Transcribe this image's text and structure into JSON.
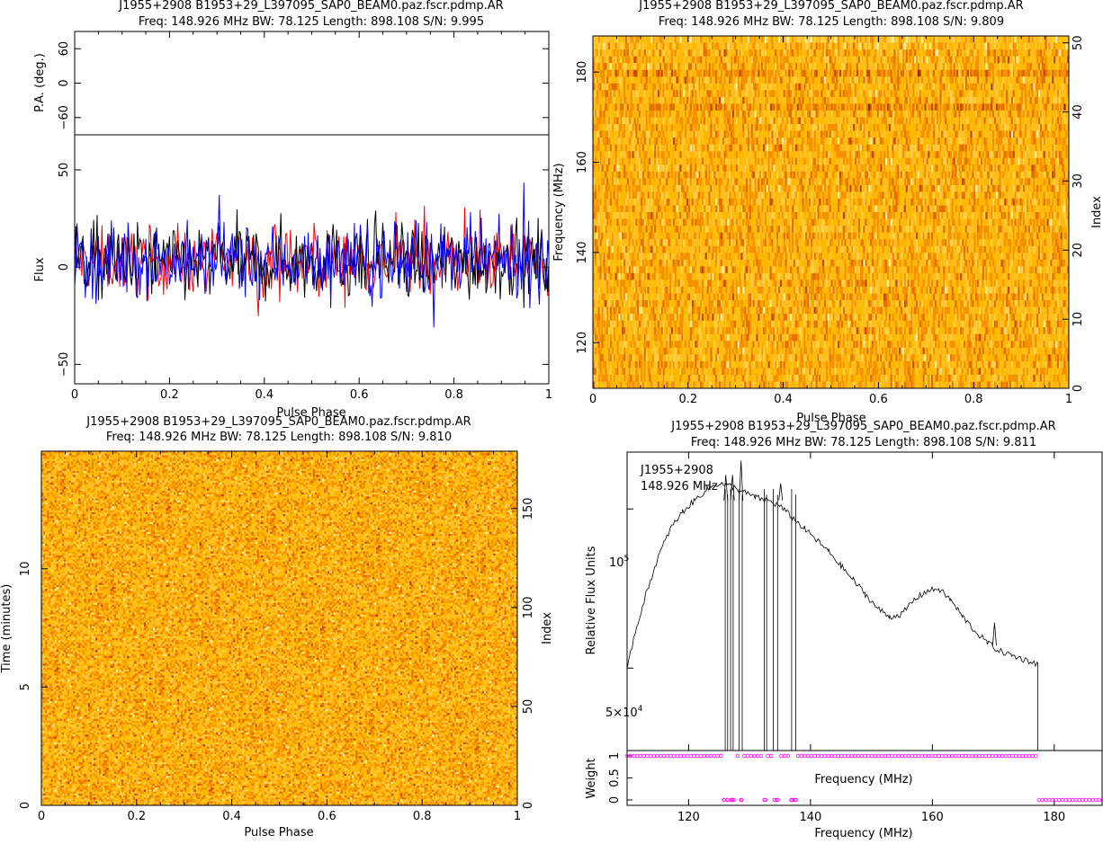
{
  "chart_data": [
    {
      "panel": "top-left",
      "type": "line",
      "title": "J1955+2908  B1953+29_L397095_SAP0_BEAM0.paz.fscr.pdmp.AR",
      "subtitle": "Freq: 148.926 MHz BW: 78.125 Length: 898.108 S/N: 9.995",
      "upper": {
        "ylabel": "P.A. (deg.)",
        "ylim": [
          -90,
          90
        ],
        "yticks": [
          "60",
          "0",
          "−60"
        ],
        "series": []
      },
      "lower": {
        "ylabel": "Flux",
        "xlabel": "Pulse Phase",
        "xlim": [
          0,
          1
        ],
        "ylim": [
          -60,
          68
        ],
        "xticks": [
          "0",
          "0.2",
          "0.4",
          "0.6",
          "0.8",
          "1"
        ],
        "yticks": [
          "50",
          "0",
          "−50"
        ],
        "series": [
          {
            "color": "#ff0000",
            "mean": 3,
            "spread": 14,
            "step": 0.0025
          },
          {
            "color": "#000000",
            "mean": 3,
            "spread": 17,
            "step": 0.0025
          },
          {
            "color": "#0000ff",
            "mean": 3,
            "spread": 16,
            "step": 0.0025
          }
        ]
      }
    },
    {
      "panel": "top-right",
      "type": "heatmap",
      "title": "J1955+2908  B1953+29_L397095_SAP0_BEAM0.paz.fscr.pdmp.AR",
      "subtitle": "Freq: 148.926 MHz BW: 78.125 Length: 898.108 S/N: 9.809",
      "xlabel": "Pulse Phase",
      "ylabel": "Frequency (MHz)",
      "ylabel_right": "Index",
      "xlim": [
        0,
        1
      ],
      "ylim": [
        109.9,
        188.0
      ],
      "xticks": [
        "0",
        "0.2",
        "0.4",
        "0.6",
        "0.8",
        "1"
      ],
      "yticks": [
        "120",
        "140",
        "160",
        "180"
      ],
      "yticks_right": [
        "0",
        "10",
        "20",
        "30",
        "40",
        "50"
      ],
      "rows": 52,
      "cols": 280
    },
    {
      "panel": "bottom-left",
      "type": "heatmap",
      "title": "J1955+2908  B1953+29_L397095_SAP0_BEAM0.paz.fscr.pdmp.AR",
      "subtitle": "Freq: 148.926 MHz BW: 78.125 Length: 898.108 S/N: 9.810",
      "xlabel": "Pulse Phase",
      "ylabel": "Time (minutes)",
      "ylabel_right": "Index",
      "xlim": [
        0,
        1
      ],
      "ylim": [
        0,
        14.97
      ],
      "xticks": [
        "0",
        "0.2",
        "0.4",
        "0.6",
        "0.8",
        "1"
      ],
      "yticks": [
        "0",
        "5",
        "10"
      ],
      "yticks_right": [
        "0",
        "50",
        "100",
        "150"
      ],
      "rows": 180,
      "cols": 256
    },
    {
      "panel": "bottom-right",
      "type": "line",
      "title": "J1955+2908  B1953+29_L397095_SAP0_BEAM0.paz.fscr.pdmp.AR",
      "subtitle": "Freq: 148.926 MHz BW: 78.125 Length: 898.108 S/N: 9.811",
      "legend": [
        "J1955+2908",
        "148.926 MHz"
      ],
      "ylabel": "Relative Flux Units",
      "xlim": [
        109.9,
        188.0
      ],
      "xticks": [
        "120",
        "140",
        "160",
        "180"
      ],
      "ytick_labels": [
        "10^5",
        "5×10^4"
      ],
      "spectrum": [
        [
          109.9,
          2.8
        ],
        [
          111,
          4
        ],
        [
          113,
          5.5
        ],
        [
          115,
          6.8
        ],
        [
          117,
          7.8
        ],
        [
          119,
          8.4
        ],
        [
          121,
          8.8
        ],
        [
          123,
          9.2
        ],
        [
          125,
          9.4
        ],
        [
          127,
          9.3
        ],
        [
          129,
          9.1
        ],
        [
          131,
          8.9
        ],
        [
          133,
          8.8
        ],
        [
          135,
          8.6
        ],
        [
          137,
          8.2
        ],
        [
          139,
          7.8
        ],
        [
          141,
          7.4
        ],
        [
          143,
          7
        ],
        [
          145,
          6.5
        ],
        [
          147,
          6
        ],
        [
          149,
          5.5
        ],
        [
          151,
          5
        ],
        [
          153,
          4.7
        ],
        [
          155,
          4.8
        ],
        [
          157,
          5.3
        ],
        [
          159,
          5.6
        ],
        [
          161,
          5.7
        ],
        [
          163,
          5.3
        ],
        [
          165,
          4.7
        ],
        [
          167,
          4.2
        ],
        [
          169,
          3.8
        ],
        [
          171,
          3.5
        ],
        [
          173,
          3.35
        ],
        [
          175,
          3.2
        ],
        [
          177.3,
          3.05
        ]
      ],
      "spectrum_max": 10.5,
      "spikes": [
        [
          126.1,
          9.7
        ],
        [
          127.2,
          9.7
        ],
        [
          128.6,
          10.2
        ],
        [
          135.1,
          9.4
        ],
        [
          170.2,
          4.5
        ]
      ],
      "zapped": [
        [
          126.0,
          126.4
        ],
        [
          126.9,
          127.3
        ],
        [
          128.3,
          128.8
        ],
        [
          132.4,
          132.8
        ],
        [
          133.9,
          134.6
        ],
        [
          136.9,
          137.6
        ]
      ],
      "weights": {
        "ylabel": "Weight",
        "xlabel": "Frequency (MHz)",
        "yticks": [
          "0",
          "0.5",
          "1"
        ],
        "one_range": [
          109.9,
          177.3
        ],
        "zero_points": [
          125.8,
          126.4,
          127.2,
          128.7,
          132.6,
          134.1,
          134.5,
          137.0,
          137.6
        ],
        "zero_range": [
          177.5,
          188.0
        ]
      },
      "xlabel": "Frequency (MHz)",
      "middle_label": "Frequency (MHz)"
    }
  ]
}
